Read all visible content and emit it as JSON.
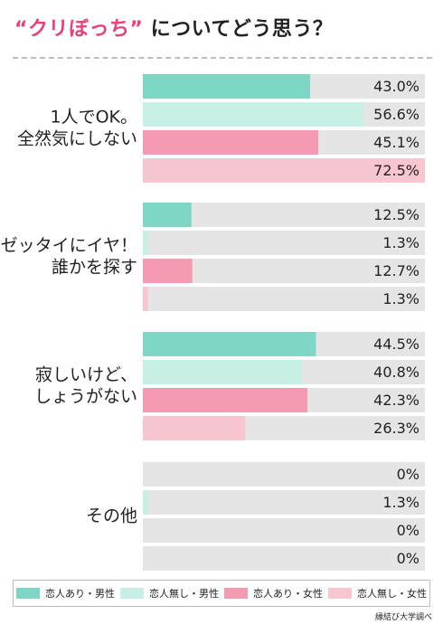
{
  "title": {
    "accent": "“クリぼっち”",
    "rest": " についてどう思う？"
  },
  "source": "縁結び大学調べ",
  "colors": {
    "track": "#e5e5e5",
    "series": [
      "#7fd6c4",
      "#c8efe5",
      "#f29bb3",
      "#f8c6d0"
    ]
  },
  "chart_data": {
    "type": "bar",
    "orientation": "horizontal",
    "categories": [
      [
        "1人でOK。",
        "全然気にしない"
      ],
      [
        "ゼッタイにイヤ！",
        "誰かを探す"
      ],
      [
        "寂しいけど、",
        "しょうがない"
      ],
      [
        "その他"
      ]
    ],
    "series": [
      {
        "name": "恋人あり・男性",
        "values": [
          43.0,
          12.5,
          44.5,
          0
        ],
        "labels": [
          "43.0%",
          "12.5%",
          "44.5%",
          "0%"
        ]
      },
      {
        "name": "恋人無し・男性",
        "values": [
          56.6,
          1.3,
          40.8,
          1.3
        ],
        "labels": [
          "56.6%",
          "1.3%",
          "40.8%",
          "1.3%"
        ]
      },
      {
        "name": "恋人あり・女性",
        "values": [
          45.1,
          12.7,
          42.3,
          0
        ],
        "labels": [
          "45.1%",
          "12.7%",
          "42.3%",
          "0%"
        ]
      },
      {
        "name": "恋人無し・女性",
        "values": [
          72.5,
          1.3,
          26.3,
          0
        ],
        "labels": [
          "72.5%",
          "1.3%",
          "26.3%",
          "0%"
        ]
      }
    ],
    "xlim": [
      0,
      72.5
    ],
    "legend_position": "bottom"
  }
}
